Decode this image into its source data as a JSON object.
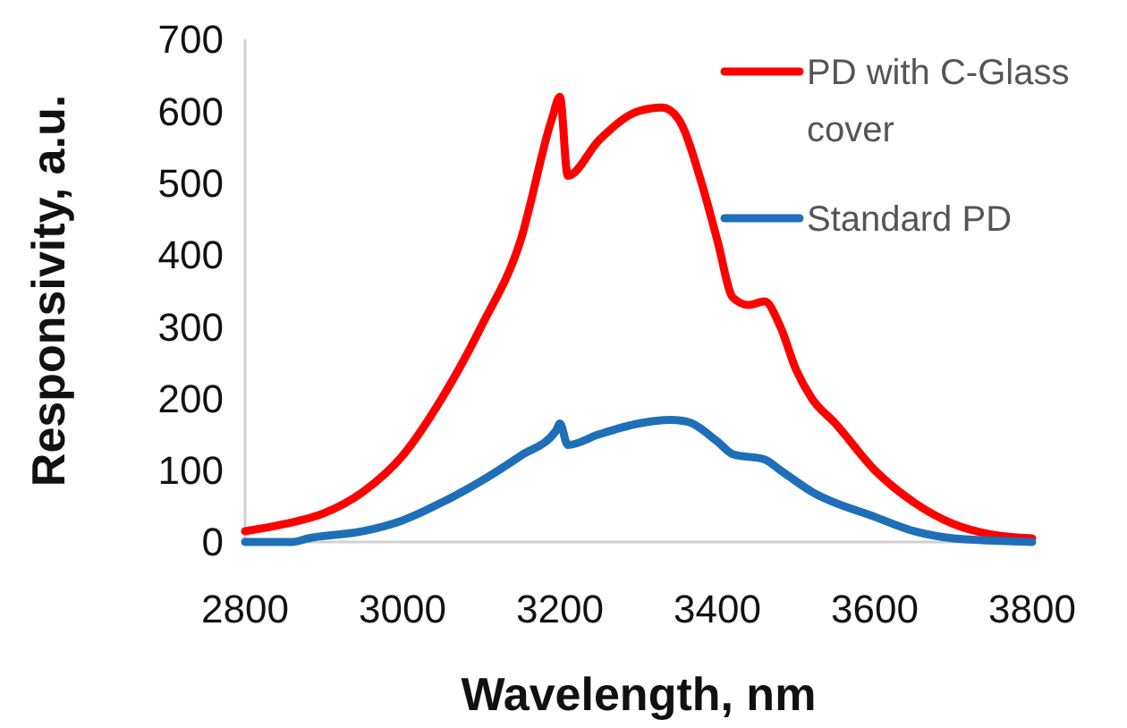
{
  "chart_data": {
    "type": "line",
    "xlabel": "Wavelength, nm",
    "ylabel": "Responsivity, a.u.",
    "xlim": [
      2800,
      3800
    ],
    "ylim": [
      0,
      700
    ],
    "xticks": [
      2800,
      3000,
      3200,
      3400,
      3600,
      3800
    ],
    "yticks": [
      0,
      100,
      200,
      300,
      400,
      500,
      600,
      700
    ],
    "grid": false,
    "legend": "top right",
    "marker": "none",
    "line_style": "solid",
    "series": [
      {
        "name": "PD with C-Glass cover",
        "color": "#ff0000",
        "x": [
          2800,
          2850,
          2900,
          2950,
          3000,
          3050,
          3100,
          3150,
          3190,
          3200,
          3210,
          3250,
          3300,
          3330,
          3350,
          3380,
          3400,
          3420,
          3440,
          3460,
          3480,
          3500,
          3520,
          3550,
          3600,
          3650,
          3700,
          3750,
          3800
        ],
        "values": [
          15,
          25,
          40,
          70,
          120,
          200,
          300,
          420,
          590,
          620,
          510,
          560,
          600,
          605,
          590,
          500,
          420,
          340,
          330,
          335,
          300,
          240,
          200,
          165,
          100,
          55,
          25,
          10,
          5
        ]
      },
      {
        "name": "Standard PD",
        "color": "#1f6fb8",
        "x": [
          2800,
          2860,
          2880,
          2950,
          3000,
          3050,
          3100,
          3150,
          3195,
          3200,
          3210,
          3250,
          3300,
          3340,
          3360,
          3400,
          3420,
          3460,
          3480,
          3520,
          3600,
          3650,
          3700,
          3750,
          3800
        ],
        "values": [
          0,
          0,
          5,
          15,
          30,
          55,
          85,
          120,
          155,
          165,
          135,
          150,
          165,
          170,
          168,
          140,
          122,
          115,
          100,
          70,
          35,
          15,
          5,
          2,
          0
        ]
      }
    ]
  }
}
